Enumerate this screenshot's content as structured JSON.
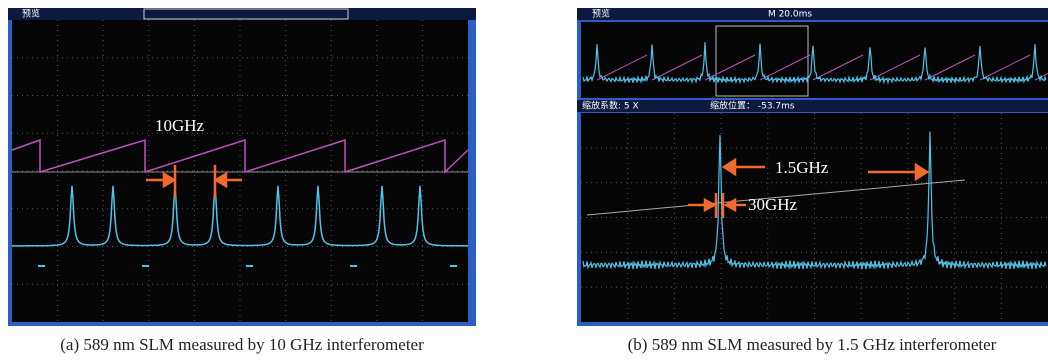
{
  "panels": [
    {
      "header": "预览",
      "annotation": "10GHz",
      "caption": "(a) 589 nm SLM measured by 10 GHz interferometer"
    },
    {
      "header": "预览",
      "timebase": "M 20.0ms",
      "zoom_factor": "缩放系数: 5 X",
      "zoom_position": "缩放位置： -53.7ms",
      "annotations": [
        "1.5GHz",
        "30GHz"
      ],
      "caption": "(b) 589 nm SLM measured by 1.5 GHz interferometer"
    }
  ]
}
